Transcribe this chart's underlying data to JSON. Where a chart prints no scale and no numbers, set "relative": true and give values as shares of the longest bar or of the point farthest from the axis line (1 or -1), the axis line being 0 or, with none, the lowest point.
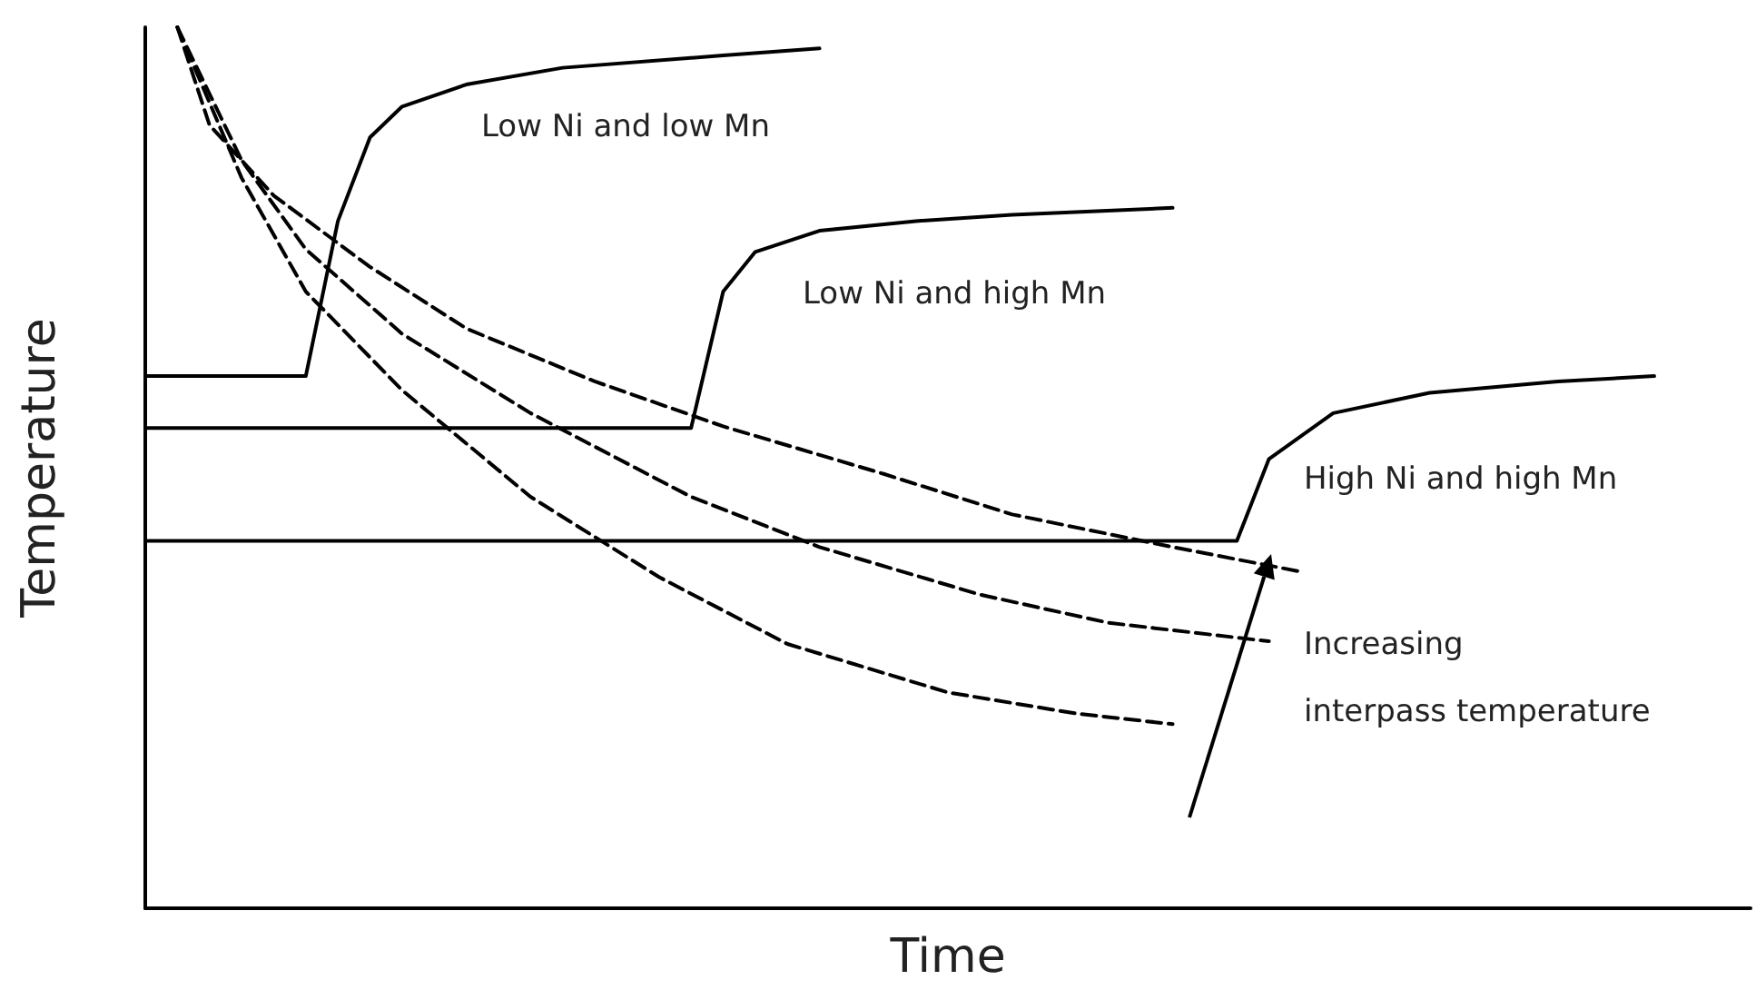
{
  "chart_data": {
    "type": "line",
    "relative": true,
    "xlabel": "Time",
    "ylabel": "Temperature",
    "ylim": [
      0,
      1
    ],
    "grid": false,
    "marker": "none",
    "categories": [
      null,
      null,
      null,
      null,
      null,
      null,
      null,
      null,
      null,
      null,
      null,
      null,
      null,
      null,
      null,
      null,
      null,
      null,
      null,
      null,
      null,
      null,
      null,
      null,
      null,
      null,
      null,
      null,
      null,
      null,
      null,
      null,
      null,
      null,
      null,
      null,
      null,
      null,
      null,
      null,
      null,
      null,
      null,
      null,
      null,
      null,
      null,
      null,
      null,
      null,
      null
    ],
    "series": [
      {
        "color": "#000000",
        "line_style": "solid",
        "values": [
          0.604,
          null,
          null,
          null,
          null,
          0.604,
          0.78,
          0.875,
          0.91,
          null,
          0.935,
          null,
          null,
          0.954,
          null,
          null,
          null,
          null,
          0.968,
          null,
          null,
          0.976,
          null,
          null,
          null,
          null,
          null,
          null,
          null,
          null,
          null,
          null,
          null,
          null,
          null,
          null,
          null,
          null,
          null,
          null,
          null,
          null,
          null,
          null,
          null,
          null,
          null,
          null,
          null,
          null,
          null
        ]
      },
      {
        "color": "#000000",
        "line_style": "solid",
        "values": [
          0.545,
          null,
          null,
          null,
          null,
          null,
          null,
          null,
          null,
          null,
          null,
          null,
          null,
          null,
          null,
          null,
          null,
          0.545,
          0.7,
          0.745,
          null,
          0.769,
          null,
          null,
          0.78,
          null,
          null,
          0.787,
          null,
          null,
          null,
          null,
          0.795,
          null,
          null,
          null,
          null,
          null,
          null,
          null,
          null,
          null,
          null,
          null,
          null,
          null,
          null,
          null,
          null,
          null,
          null
        ]
      },
      {
        "color": "#000000",
        "line_style": "solid",
        "values": [
          0.417,
          null,
          null,
          null,
          null,
          null,
          null,
          null,
          null,
          null,
          null,
          null,
          null,
          null,
          null,
          null,
          null,
          null,
          null,
          null,
          null,
          null,
          null,
          null,
          null,
          null,
          null,
          null,
          null,
          null,
          null,
          null,
          null,
          null,
          0.417,
          0.51,
          null,
          0.562,
          null,
          null,
          0.585,
          null,
          null,
          null,
          0.598,
          null,
          null,
          0.604,
          null,
          null,
          null
        ]
      },
      {
        "color": "#000000",
        "line_style": "dashed",
        "values": [
          null,
          1,
          0.889,
          null,
          0.809,
          null,
          null,
          0.728,
          null,
          null,
          0.658,
          null,
          null,
          null,
          0.598,
          null,
          null,
          null,
          0.547,
          null,
          null,
          null,
          null,
          0.493,
          null,
          null,
          null,
          0.447,
          null,
          null,
          null,
          null,
          0.41,
          null,
          null,
          null,
          0.382,
          null,
          null,
          null,
          null,
          null,
          null,
          null,
          null,
          null,
          null,
          null,
          null,
          null,
          null
        ]
      },
      {
        "color": "#000000",
        "line_style": "dashed",
        "values": [
          null,
          1,
          null,
          0.849,
          null,
          0.748,
          null,
          null,
          0.652,
          null,
          null,
          null,
          0.562,
          null,
          null,
          null,
          null,
          0.467,
          null,
          null,
          null,
          0.41,
          null,
          null,
          null,
          null,
          0.356,
          null,
          null,
          null,
          0.324,
          null,
          null,
          null,
          null,
          0.303,
          null,
          null,
          null,
          null,
          null,
          null,
          null,
          null,
          null,
          null,
          null,
          null,
          null,
          null,
          null
        ]
      },
      {
        "color": "#000000",
        "line_style": "dashed",
        "values": [
          null,
          1,
          null,
          0.829,
          null,
          0.7,
          null,
          null,
          0.588,
          null,
          null,
          null,
          0.467,
          null,
          null,
          null,
          0.376,
          null,
          null,
          null,
          0.3,
          null,
          null,
          null,
          null,
          0.245,
          null,
          null,
          null,
          0.221,
          null,
          null,
          0.209,
          null,
          null,
          null,
          null,
          null,
          null,
          null,
          null,
          null,
          null,
          null,
          null,
          null,
          null,
          null,
          null,
          null,
          null
        ]
      }
    ],
    "annotations": [
      "Low Ni and low Mn",
      "Low Ni and high Mn",
      "High Ni and high Mn",
      "Increasing",
      "interpass temperature"
    ]
  }
}
